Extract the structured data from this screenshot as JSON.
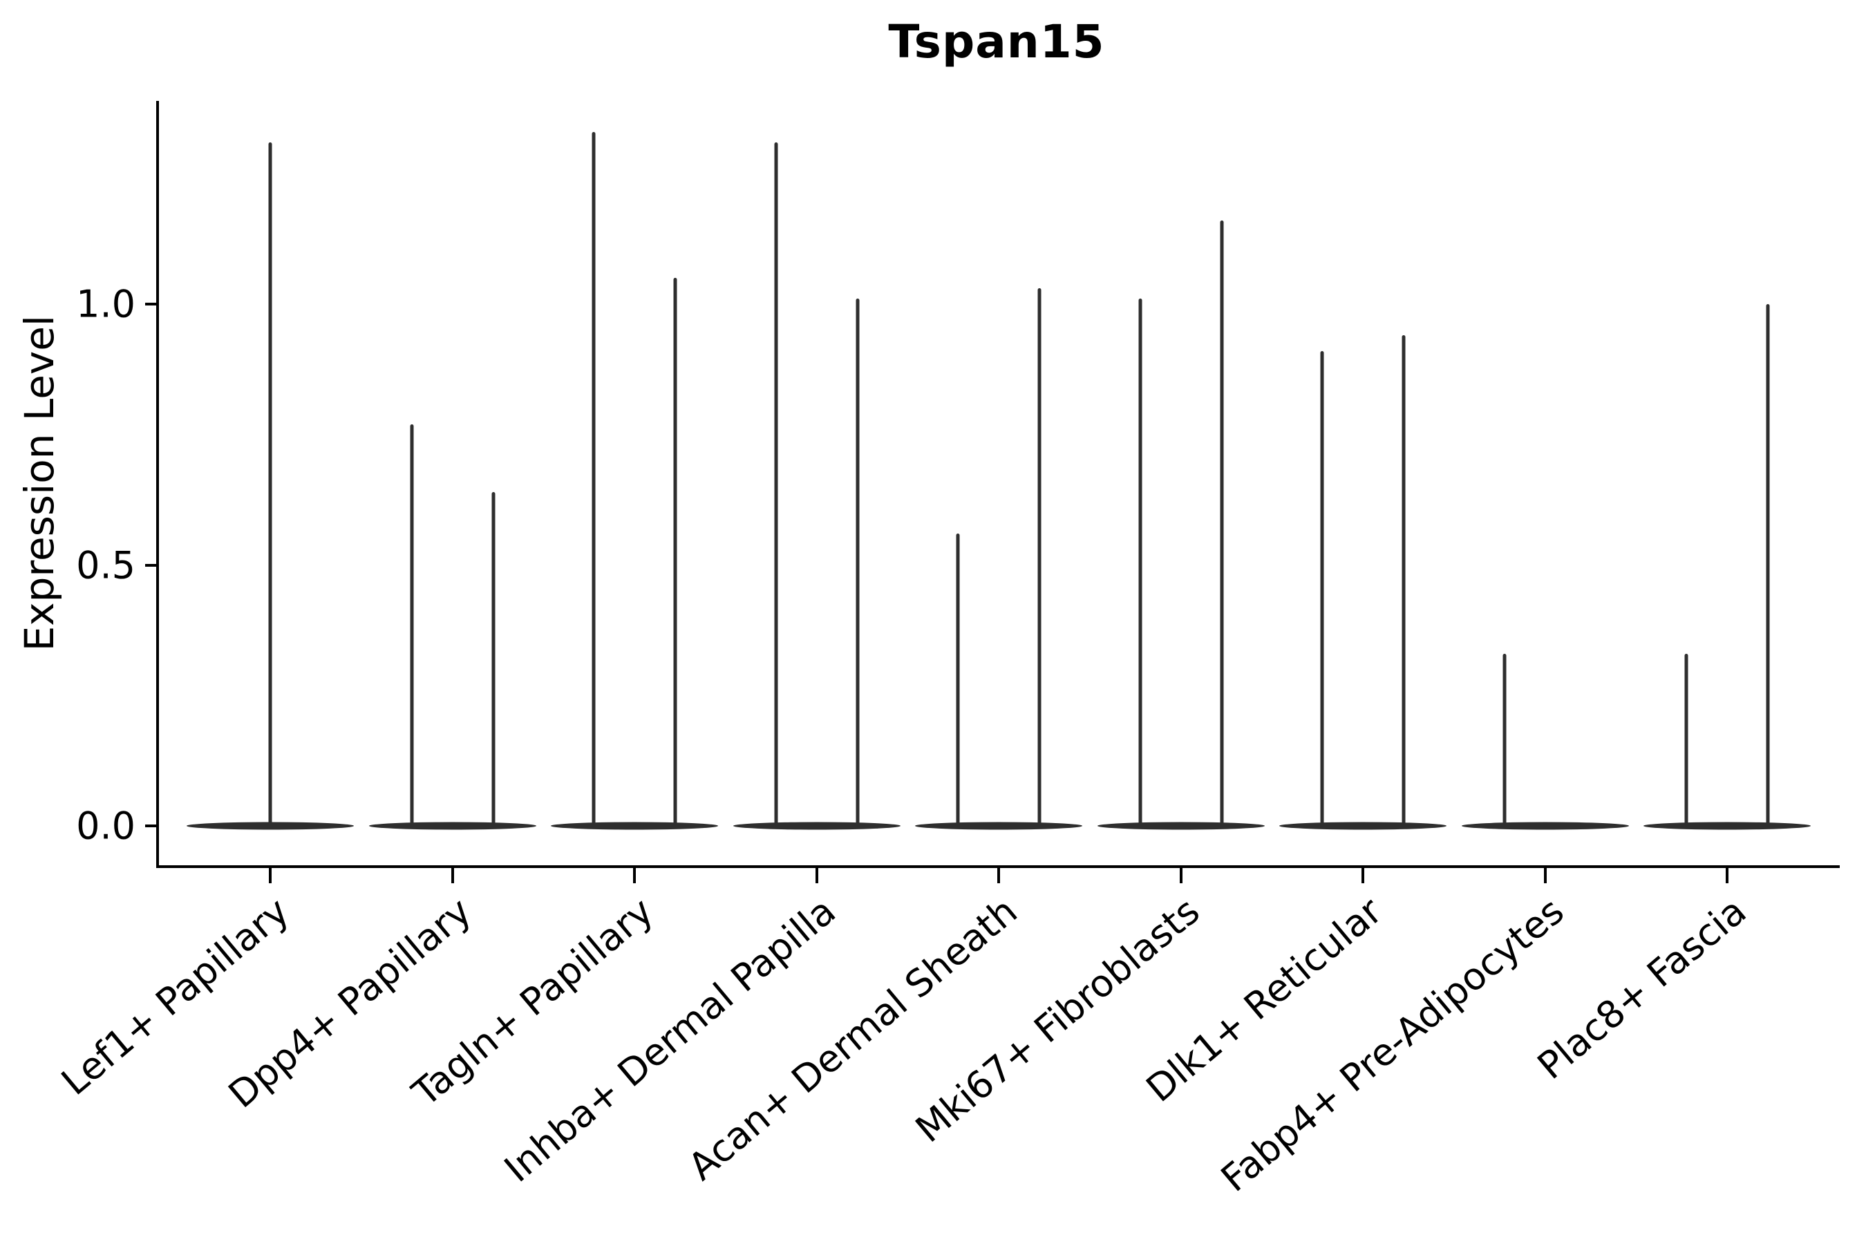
{
  "chart_data": {
    "type": "violin",
    "title": "Tspan15",
    "xlabel": "",
    "ylabel": "Expression Level",
    "yticks": [
      "0.0",
      "0.5",
      "1.0"
    ],
    "ytick_values": [
      0.0,
      0.5,
      1.0
    ],
    "ylim": [
      -0.07,
      1.4
    ],
    "grid": false,
    "legend_position": "none",
    "style_note": "collapsed violins: wide flat body at 0 expression with one or two thin peak spikes per cluster",
    "categories": [
      "Lef1+ Papillary",
      "Dpp4+ Papillary",
      "Tagln+ Papillary",
      "Inhba+ Dermal Papilla",
      "Acan+ Dermal Sheath",
      "Mki67+ Fibroblasts",
      "Dlk1+ Reticular",
      "Fabp4+ Pre-Adipocytes",
      "Plac8+ Fascia"
    ],
    "violins": [
      {
        "category": "Lef1+ Papillary",
        "spike_maxima": [
          1.31
        ]
      },
      {
        "category": "Dpp4+ Papillary",
        "spike_maxima": [
          0.77,
          0.64
        ]
      },
      {
        "category": "Tagln+ Papillary",
        "spike_maxima": [
          1.33,
          1.05
        ]
      },
      {
        "category": "Inhba+ Dermal Papilla",
        "spike_maxima": [
          1.31,
          1.01
        ]
      },
      {
        "category": "Acan+ Dermal Sheath",
        "spike_maxima": [
          0.56,
          1.03
        ]
      },
      {
        "category": "Mki67+ Fibroblasts",
        "spike_maxima": [
          1.01,
          1.16
        ]
      },
      {
        "category": "Dlk1+ Reticular",
        "spike_maxima": [
          0.91,
          0.94
        ]
      },
      {
        "category": "Fabp4+ Pre-Adipocytes",
        "spike_maxima": [
          0.33,
          0
        ]
      },
      {
        "category": "Plac8+ Fascia",
        "spike_maxima": [
          0.33,
          1.0
        ]
      }
    ],
    "colors": {
      "violin_line": "#2e2e2e",
      "axis": "#000000",
      "text": "#000000",
      "background": "#ffffff"
    }
  }
}
